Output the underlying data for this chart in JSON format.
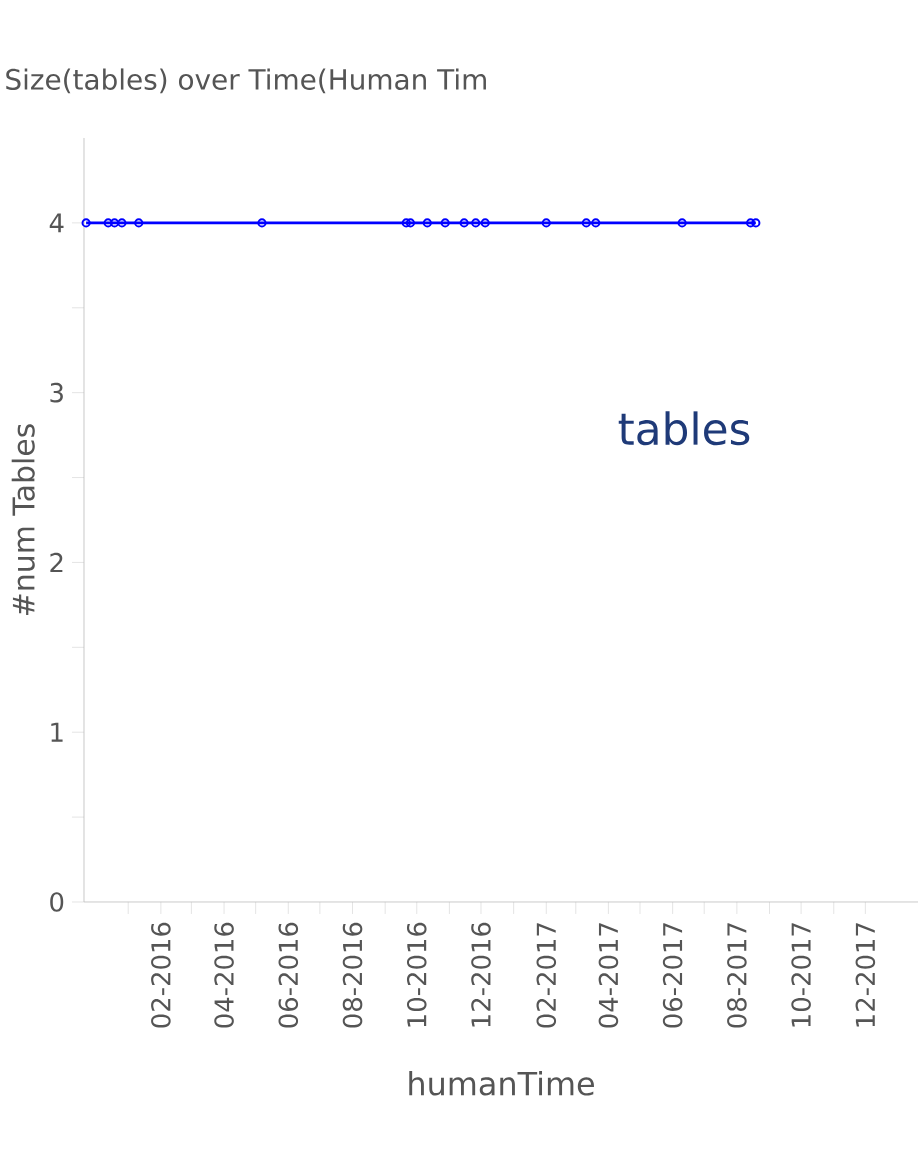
{
  "chart_data": {
    "type": "line",
    "title": "Size(tables) over Time(Human Tim",
    "xlabel": "humanTime",
    "ylabel": "#num Tables",
    "annotations": [
      "tables"
    ],
    "x": [
      "2015-11-22",
      "2015-12-13",
      "2015-12-19",
      "2015-12-26",
      "2016-01-11",
      "2016-05-07",
      "2016-09-21",
      "2016-09-25",
      "2016-10-11",
      "2016-10-28",
      "2016-11-15",
      "2016-11-26",
      "2016-12-05",
      "2017-02-01",
      "2017-03-11",
      "2017-03-20",
      "2017-06-10",
      "2017-08-14",
      "2017-08-19"
    ],
    "series": [
      {
        "color": "#0000ff",
        "values": [
          4,
          4,
          4,
          4,
          4,
          4,
          4,
          4,
          4,
          4,
          4,
          4,
          4,
          4,
          4,
          4,
          4,
          4,
          4
        ]
      }
    ],
    "xlim": [
      "2015-11-20",
      "2018-01-20"
    ],
    "xticks": [
      {
        "value": "2016-01",
        "label": null
      },
      {
        "value": "2016-02",
        "label": "02-2016"
      },
      {
        "value": "2016-03",
        "label": null
      },
      {
        "value": "2016-04",
        "label": "04-2016"
      },
      {
        "value": "2016-05",
        "label": null
      },
      {
        "value": "2016-06",
        "label": "06-2016"
      },
      {
        "value": "2016-07",
        "label": null
      },
      {
        "value": "2016-08",
        "label": "08-2016"
      },
      {
        "value": "2016-09",
        "label": null
      },
      {
        "value": "2016-10",
        "label": "10-2016"
      },
      {
        "value": "2016-11",
        "label": null
      },
      {
        "value": "2016-12",
        "label": "12-2016"
      },
      {
        "value": "2017-01",
        "label": null
      },
      {
        "value": "2017-02",
        "label": "02-2017"
      },
      {
        "value": "2017-03",
        "label": null
      },
      {
        "value": "2017-04",
        "label": "04-2017"
      },
      {
        "value": "2017-05",
        "label": null
      },
      {
        "value": "2017-06",
        "label": "06-2017"
      },
      {
        "value": "2017-07",
        "label": null
      },
      {
        "value": "2017-08",
        "label": "08-2017"
      },
      {
        "value": "2017-09",
        "label": null
      },
      {
        "value": "2017-10",
        "label": "10-2017"
      },
      {
        "value": "2017-11",
        "label": null
      },
      {
        "value": "2017-12",
        "label": "12-2017"
      }
    ],
    "ylim": [
      0,
      4.5
    ],
    "yticks": [
      0,
      {
        "value": 0.5,
        "label": null
      },
      1,
      {
        "value": 1.5,
        "label": null
      },
      2,
      {
        "value": 2.5,
        "label": null
      },
      3,
      {
        "value": 3.5,
        "label": null
      },
      4
    ],
    "marker": "circle",
    "grid": false
  }
}
